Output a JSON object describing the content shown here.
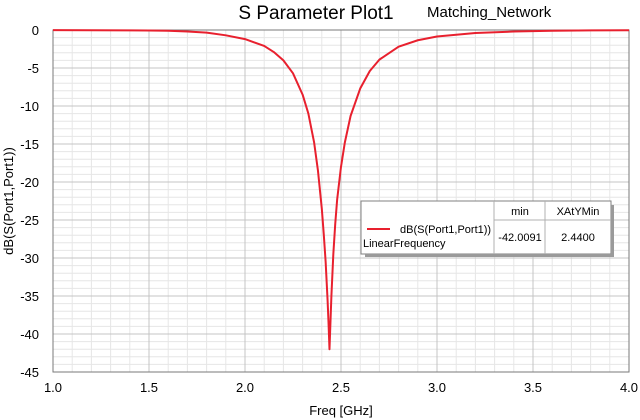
{
  "chart_data": {
    "type": "line",
    "title": "S Parameter Plot1",
    "subtitle": "Matching_Network",
    "xlabel": "Freq [GHz]",
    "ylabel": "dB(S(Port1,Port1))",
    "xlim": [
      1.0,
      4.0
    ],
    "ylim": [
      -45,
      0
    ],
    "x_ticks": [
      "1.0",
      "1.5",
      "2.0",
      "2.5",
      "3.0",
      "3.5",
      "4.0"
    ],
    "y_ticks": [
      "0",
      "-5",
      "-10",
      "-15",
      "-20",
      "-25",
      "-30",
      "-35",
      "-40",
      "-45"
    ],
    "grid": true,
    "series": [
      {
        "name": "dB(S(Port1,Port1))",
        "color": "#e8202e",
        "x": [
          1.0,
          1.2,
          1.4,
          1.5,
          1.6,
          1.7,
          1.8,
          1.9,
          2.0,
          2.1,
          2.15,
          2.2,
          2.25,
          2.3,
          2.33,
          2.36,
          2.38,
          2.4,
          2.41,
          2.42,
          2.43,
          2.435,
          2.44,
          2.445,
          2.45,
          2.46,
          2.47,
          2.48,
          2.5,
          2.52,
          2.55,
          2.6,
          2.65,
          2.7,
          2.8,
          2.9,
          3.0,
          3.2,
          3.4,
          3.6,
          3.8,
          4.0
        ],
        "y": [
          -0.02,
          -0.03,
          -0.05,
          -0.07,
          -0.1,
          -0.2,
          -0.35,
          -0.7,
          -1.2,
          -2.1,
          -2.9,
          -4.0,
          -5.7,
          -8.5,
          -11.0,
          -14.8,
          -18.5,
          -23.5,
          -26.8,
          -30.5,
          -35.5,
          -38.5,
          -42.0,
          -38.5,
          -35.0,
          -29.5,
          -25.5,
          -22.3,
          -18.0,
          -14.8,
          -11.3,
          -7.7,
          -5.4,
          -3.9,
          -2.2,
          -1.35,
          -0.85,
          -0.4,
          -0.2,
          -0.1,
          -0.05,
          -0.03
        ]
      }
    ],
    "legend": {
      "position": "center-right",
      "header_min": "min",
      "header_xatymin": "XAtYMin",
      "trace_label": "dB(S(Port1,Port1))",
      "sweep_label": "LinearFrequency",
      "min_value": "-42.0091",
      "xatymin_value": "2.4400"
    }
  }
}
